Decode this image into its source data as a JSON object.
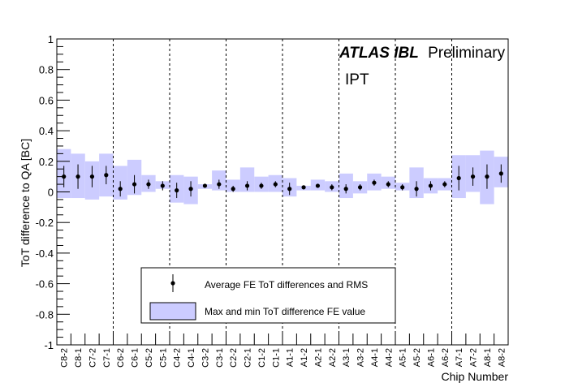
{
  "chart_data": {
    "type": "scatter",
    "title": "",
    "annotations": {
      "experiment": "ATLAS IBL",
      "status": "Preliminary",
      "tag": "IPT"
    },
    "xlabel": "Chip Number",
    "ylabel": "ToT difference to QA [BC]",
    "ylim": [
      -1,
      1
    ],
    "yticks": [
      "1",
      "0.8",
      "0.6",
      "0.4",
      "0.2",
      "0",
      "-0.2",
      "-0.4",
      "-0.6",
      "-0.8",
      "-1"
    ],
    "grid": false,
    "legend_position": "bottom-center",
    "categories": [
      "C8-2",
      "C8-1",
      "C7-2",
      "C7-1",
      "C6-2",
      "C6-1",
      "C5-2",
      "C5-1",
      "C4-2",
      "C4-1",
      "C3-2",
      "C3-1",
      "C2-2",
      "C2-1",
      "C1-2",
      "C1-1",
      "A1-1",
      "A1-2",
      "A2-1",
      "A2-2",
      "A3-1",
      "A3-2",
      "A4-1",
      "A4-2",
      "A5-1",
      "A5-2",
      "A6-1",
      "A6-2",
      "A7-1",
      "A7-2",
      "A8-1",
      "A8-2"
    ],
    "separators_after_index": [
      3,
      7,
      11,
      15,
      19,
      23,
      27
    ],
    "series": [
      {
        "name": "Average FE ToT differences and RMS",
        "marker": "point-with-errorbar",
        "color": "#000000",
        "values": [
          0.1,
          0.1,
          0.1,
          0.11,
          0.02,
          0.05,
          0.05,
          0.04,
          0.01,
          0.02,
          0.04,
          0.05,
          0.02,
          0.04,
          0.04,
          0.05,
          0.02,
          0.03,
          0.04,
          0.03,
          0.02,
          0.03,
          0.06,
          0.05,
          0.03,
          0.02,
          0.04,
          0.05,
          0.09,
          0.1,
          0.1,
          0.12
        ],
        "errors": [
          0.07,
          0.08,
          0.07,
          0.06,
          0.05,
          0.06,
          0.03,
          0.03,
          0.05,
          0.05,
          0.01,
          0.03,
          0.02,
          0.03,
          0.02,
          0.02,
          0.04,
          0.01,
          0.01,
          0.02,
          0.03,
          0.02,
          0.02,
          0.02,
          0.02,
          0.05,
          0.03,
          0.02,
          0.08,
          0.06,
          0.08,
          0.06
        ]
      },
      {
        "name": "Max and min ToT difference FE value",
        "marker": "band",
        "color": "#ccccff",
        "edge": "#9999dd",
        "min": [
          -0.04,
          -0.04,
          -0.05,
          -0.03,
          -0.05,
          -0.02,
          0.0,
          0.02,
          -0.07,
          -0.08,
          0.02,
          0.01,
          0.0,
          0.0,
          0.0,
          0.0,
          -0.03,
          0.01,
          0.01,
          0.0,
          -0.04,
          -0.01,
          0.01,
          0.02,
          0.01,
          -0.04,
          -0.01,
          0.01,
          -0.04,
          0.0,
          -0.08,
          0.03
        ],
        "max": [
          0.28,
          0.25,
          0.2,
          0.25,
          0.17,
          0.21,
          0.11,
          0.07,
          0.11,
          0.1,
          0.05,
          0.14,
          0.08,
          0.16,
          0.1,
          0.11,
          0.09,
          0.04,
          0.08,
          0.07,
          0.12,
          0.07,
          0.12,
          0.1,
          0.06,
          0.16,
          0.09,
          0.09,
          0.24,
          0.24,
          0.27,
          0.23
        ]
      }
    ]
  }
}
